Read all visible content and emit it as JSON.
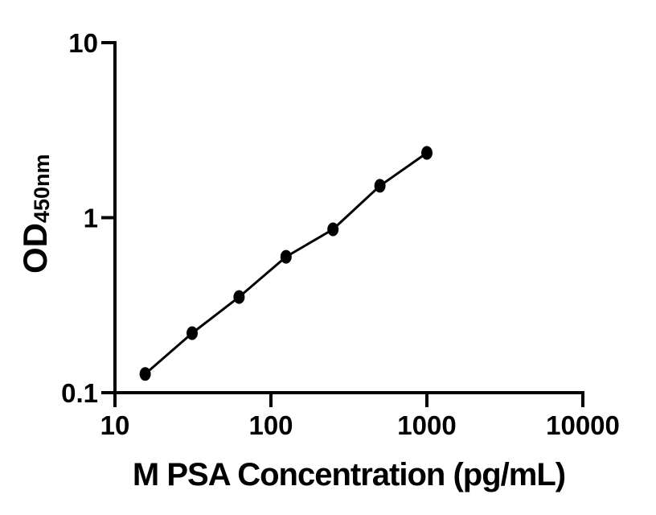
{
  "figure": {
    "background": "#ffffff"
  },
  "chart_data": {
    "type": "line",
    "title": "",
    "xlabel": "M PSA Concentration (pg/mL)",
    "ylabel": {
      "main": "OD",
      "sub": "450nm"
    },
    "legend": "none",
    "grid": false,
    "marker": "filled-circle",
    "colors": {
      "axis": "#000000",
      "line": "#000000",
      "marker": "#000000",
      "text": "#000000",
      "background": "#ffffff"
    },
    "x_axis": {
      "scale": "log",
      "min": 10,
      "max": 10000,
      "ticks": [
        10,
        100,
        1000,
        10000
      ],
      "tick_labels": [
        "10",
        "100",
        "1000",
        "10000"
      ]
    },
    "y_axis": {
      "scale": "log",
      "min": 0.1,
      "max": 10,
      "ticks": [
        0.1,
        1,
        10
      ],
      "tick_labels": [
        "0.1",
        "1",
        "10"
      ]
    },
    "series": [
      {
        "x": [
          15.63,
          31.25,
          62.5,
          125,
          250,
          500,
          1000
        ],
        "y": [
          0.128,
          0.219,
          0.352,
          0.598,
          0.858,
          1.52,
          2.344
        ]
      }
    ]
  }
}
